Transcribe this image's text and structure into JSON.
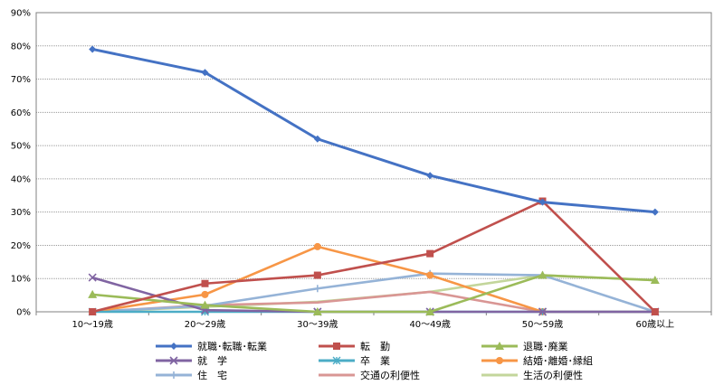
{
  "chart_data": {
    "type": "line",
    "categories": [
      "10～19歳",
      "20～29歳",
      "30～39歳",
      "40～49歳",
      "50～59歳",
      "60歳以上"
    ],
    "y_ticks": [
      "0%",
      "10%",
      "20%",
      "30%",
      "40%",
      "50%",
      "60%",
      "70%",
      "80%",
      "90%"
    ],
    "ylim": [
      0,
      90
    ],
    "grid": true,
    "legend_position": "bottom",
    "series": [
      {
        "name": "就職･転職･転業",
        "color": "#4472C4",
        "marker": "diamond",
        "values": [
          79,
          72,
          52,
          41,
          33,
          30
        ]
      },
      {
        "name": "転　勤",
        "color": "#C0504D",
        "marker": "square",
        "values": [
          0,
          8.5,
          11,
          17.5,
          33.3,
          0
        ]
      },
      {
        "name": "退職･廃業",
        "color": "#9BBB59",
        "marker": "triangle",
        "values": [
          5.2,
          2,
          0,
          0,
          11,
          9.5
        ]
      },
      {
        "name": "就　学",
        "color": "#8064A2",
        "marker": "x",
        "values": [
          10.3,
          0.5,
          0,
          0,
          0,
          0
        ]
      },
      {
        "name": "卒　業",
        "color": "#4BACC6",
        "marker": "star",
        "values": [
          0,
          0,
          0,
          0,
          0,
          0
        ]
      },
      {
        "name": "結婚･離婚･縁組",
        "color": "#F79646",
        "marker": "circle",
        "values": [
          0,
          5.2,
          19.6,
          11,
          0,
          0
        ]
      },
      {
        "name": "住　宅",
        "color": "#95B3D7",
        "marker": "plus",
        "values": [
          0,
          1.8,
          7,
          11.5,
          11,
          0
        ]
      },
      {
        "name": "交通の利便性",
        "color": "#D99694",
        "marker": "none",
        "values": [
          0,
          2,
          2.8,
          6,
          0,
          0
        ]
      },
      {
        "name": "生活の利便性",
        "color": "#C3D69B",
        "marker": "none",
        "values": [
          0,
          1.5,
          3,
          6,
          11,
          9.5
        ]
      }
    ]
  }
}
